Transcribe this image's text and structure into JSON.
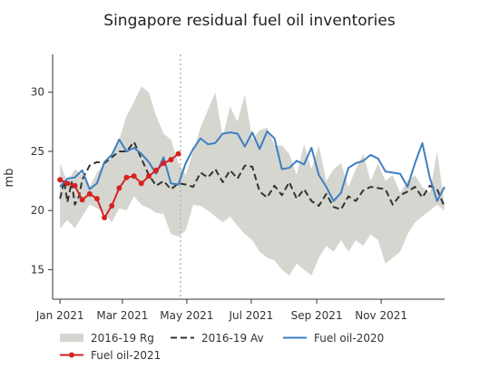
{
  "chart_data": {
    "type": "line",
    "title": "Singapore residual fuel oil inventories",
    "ylabel": "mb",
    "xlabel": "",
    "ylim": [
      12.5,
      33.2
    ],
    "xlim": [
      "2020-12-25",
      "2021-12-31"
    ],
    "grid": false,
    "legend_placement": "bottom",
    "y_ticks": [
      15,
      20,
      25,
      30
    ],
    "x_ticks": [
      {
        "date": "2021-01-01",
        "label": "Jan 2021"
      },
      {
        "date": "2021-03-01",
        "label": "Mar 2021"
      },
      {
        "date": "2021-05-01",
        "label": "May 2021"
      },
      {
        "date": "2021-07-01",
        "label": "Jul 2021"
      },
      {
        "date": "2021-09-01",
        "label": "Sep 2021"
      },
      {
        "date": "2021-11-01",
        "label": "Nov 2021"
      }
    ],
    "reference_line": {
      "date": "2021-04-25",
      "style": "dotted"
    },
    "legend": [
      {
        "key": "range",
        "label": "2016-19 Rg"
      },
      {
        "key": "avg",
        "label": "2016-19 Av"
      },
      {
        "key": "fo2020",
        "label": "Fuel oil-2020"
      },
      {
        "key": "fo2021",
        "label": "Fuel oil-2021"
      }
    ],
    "colors": {
      "range": "#d6d6d0",
      "avg": "#333333",
      "fo2020": "#3d7fc1",
      "fo2021": "#d62222"
    },
    "range": {
      "x": [
        "2021-01-01",
        "2021-01-08",
        "2021-01-15",
        "2021-01-22",
        "2021-01-29",
        "2021-02-05",
        "2021-02-12",
        "2021-02-19",
        "2021-02-26",
        "2021-03-05",
        "2021-03-12",
        "2021-03-19",
        "2021-03-26",
        "2021-04-02",
        "2021-04-09",
        "2021-04-16",
        "2021-04-23",
        "2021-04-30",
        "2021-05-07",
        "2021-05-14",
        "2021-05-21",
        "2021-05-28",
        "2021-06-04",
        "2021-06-11",
        "2021-06-18",
        "2021-06-25",
        "2021-07-02",
        "2021-07-09",
        "2021-07-16",
        "2021-07-23",
        "2021-07-30",
        "2021-08-06",
        "2021-08-13",
        "2021-08-20",
        "2021-08-27",
        "2021-09-03",
        "2021-09-10",
        "2021-09-17",
        "2021-09-24",
        "2021-10-01",
        "2021-10-08",
        "2021-10-15",
        "2021-10-22",
        "2021-10-29",
        "2021-11-05",
        "2021-11-12",
        "2021-11-19",
        "2021-11-26",
        "2021-12-03",
        "2021-12-10",
        "2021-12-17",
        "2021-12-24",
        "2021-12-31"
      ],
      "high": [
        24.0,
        22.4,
        23.5,
        23.0,
        22.0,
        23.2,
        24.0,
        24.5,
        26.0,
        28.0,
        29.2,
        30.5,
        30.0,
        28.0,
        26.5,
        26.0,
        24.0,
        23.0,
        25.0,
        27.0,
        28.5,
        30.0,
        26.2,
        28.8,
        27.5,
        29.8,
        26.0,
        26.8,
        27.0,
        25.5,
        25.5,
        24.8,
        23.0,
        25.6,
        23.5,
        25.5,
        22.5,
        23.5,
        24.0,
        22.0,
        23.5,
        24.8,
        22.5,
        24.0,
        22.5,
        23.0,
        21.5,
        22.5,
        23.0,
        22.0,
        21.5,
        25.0,
        20.5
      ],
      "low": [
        18.5,
        19.2,
        18.5,
        19.5,
        20.5,
        20.2,
        19.8,
        19.0,
        20.2,
        20.0,
        21.2,
        20.5,
        20.2,
        19.8,
        19.7,
        18.0,
        17.8,
        18.3,
        20.5,
        20.4,
        20.0,
        19.5,
        19.0,
        19.5,
        18.7,
        18.0,
        17.5,
        16.5,
        16.0,
        15.8,
        15.0,
        14.5,
        15.5,
        15.0,
        14.5,
        16.0,
        17.0,
        16.5,
        17.5,
        16.5,
        17.5,
        17.0,
        18.0,
        17.5,
        15.5,
        16.0,
        16.5,
        18.0,
        19.0,
        19.5,
        20.0,
        20.5,
        20.0
      ]
    },
    "series": [
      {
        "key": "avg",
        "name": "2016-19 Av",
        "x": [
          "2021-01-01",
          "2021-01-05",
          "2021-01-08",
          "2021-01-12",
          "2021-01-15",
          "2021-01-19",
          "2021-01-22",
          "2021-01-29",
          "2021-02-05",
          "2021-02-12",
          "2021-02-19",
          "2021-02-26",
          "2021-03-05",
          "2021-03-12",
          "2021-03-19",
          "2021-03-26",
          "2021-04-02",
          "2021-04-09",
          "2021-04-16",
          "2021-04-23",
          "2021-04-30",
          "2021-05-07",
          "2021-05-14",
          "2021-05-21",
          "2021-05-28",
          "2021-06-04",
          "2021-06-11",
          "2021-06-18",
          "2021-06-25",
          "2021-07-02",
          "2021-07-09",
          "2021-07-16",
          "2021-07-23",
          "2021-07-30",
          "2021-08-06",
          "2021-08-13",
          "2021-08-20",
          "2021-08-27",
          "2021-09-03",
          "2021-09-10",
          "2021-09-17",
          "2021-09-24",
          "2021-10-01",
          "2021-10-08",
          "2021-10-15",
          "2021-10-22",
          "2021-10-29",
          "2021-11-05",
          "2021-11-12",
          "2021-11-19",
          "2021-11-26",
          "2021-12-03",
          "2021-12-10",
          "2021-12-17",
          "2021-12-24",
          "2021-12-31"
        ],
        "y": [
          21.0,
          22.5,
          20.7,
          22.4,
          20.5,
          21.2,
          22.6,
          23.8,
          24.1,
          24.0,
          24.5,
          25.0,
          25.0,
          25.8,
          24.4,
          23.0,
          22.1,
          22.5,
          21.8,
          22.3,
          22.2,
          22.0,
          23.2,
          22.8,
          23.5,
          22.4,
          23.4,
          22.7,
          23.8,
          23.7,
          21.6,
          21.1,
          22.1,
          21.3,
          22.4,
          21.0,
          21.8,
          20.8,
          20.4,
          21.4,
          20.3,
          20.1,
          21.2,
          20.8,
          21.7,
          22.0,
          21.9,
          21.8,
          20.5,
          21.3,
          21.6,
          22.0,
          21.1,
          22.1,
          21.8,
          20.3
        ]
      },
      {
        "key": "fo2020",
        "name": "Fuel oil-2020",
        "x": [
          "2021-01-01",
          "2021-01-08",
          "2021-01-15",
          "2021-01-22",
          "2021-01-29",
          "2021-02-05",
          "2021-02-12",
          "2021-02-19",
          "2021-02-26",
          "2021-03-05",
          "2021-03-12",
          "2021-03-19",
          "2021-03-26",
          "2021-04-02",
          "2021-04-09",
          "2021-04-16",
          "2021-04-23",
          "2021-04-30",
          "2021-05-07",
          "2021-05-14",
          "2021-05-21",
          "2021-05-28",
          "2021-06-04",
          "2021-06-11",
          "2021-06-18",
          "2021-06-25",
          "2021-07-02",
          "2021-07-09",
          "2021-07-16",
          "2021-07-23",
          "2021-07-30",
          "2021-08-06",
          "2021-08-13",
          "2021-08-20",
          "2021-08-27",
          "2021-09-03",
          "2021-09-10",
          "2021-09-17",
          "2021-09-24",
          "2021-10-01",
          "2021-10-08",
          "2021-10-15",
          "2021-10-22",
          "2021-10-29",
          "2021-11-05",
          "2021-11-12",
          "2021-11-19",
          "2021-11-26",
          "2021-12-03",
          "2021-12-10",
          "2021-12-17",
          "2021-12-24",
          "2021-12-31"
        ],
        "y": [
          22.0,
          22.7,
          22.8,
          23.4,
          21.8,
          22.3,
          24.1,
          24.7,
          26.0,
          25.0,
          25.3,
          24.8,
          24.1,
          23.1,
          24.5,
          22.3,
          22.2,
          24.0,
          25.2,
          26.1,
          25.6,
          25.7,
          26.5,
          26.6,
          26.5,
          25.4,
          26.6,
          25.2,
          26.7,
          26.1,
          23.5,
          23.6,
          24.2,
          23.9,
          25.3,
          23.0,
          22.0,
          20.8,
          21.5,
          23.6,
          24.0,
          24.2,
          24.7,
          24.4,
          23.3,
          23.2,
          23.1,
          22.0,
          24.0,
          25.7,
          22.8,
          20.8,
          22.0
        ]
      },
      {
        "key": "fo2021",
        "name": "Fuel oil-2021",
        "markers": true,
        "x": [
          "2021-01-01",
          "2021-01-08",
          "2021-01-15",
          "2021-01-22",
          "2021-01-29",
          "2021-02-05",
          "2021-02-12",
          "2021-02-19",
          "2021-02-26",
          "2021-03-05",
          "2021-03-12",
          "2021-03-19",
          "2021-03-26",
          "2021-04-02",
          "2021-04-09",
          "2021-04-16",
          "2021-04-23"
        ],
        "y": [
          22.6,
          22.3,
          22.1,
          20.9,
          21.4,
          21.0,
          19.4,
          20.4,
          21.9,
          22.8,
          22.9,
          22.3,
          22.9,
          23.4,
          24.0,
          24.3,
          24.8
        ]
      }
    ]
  }
}
